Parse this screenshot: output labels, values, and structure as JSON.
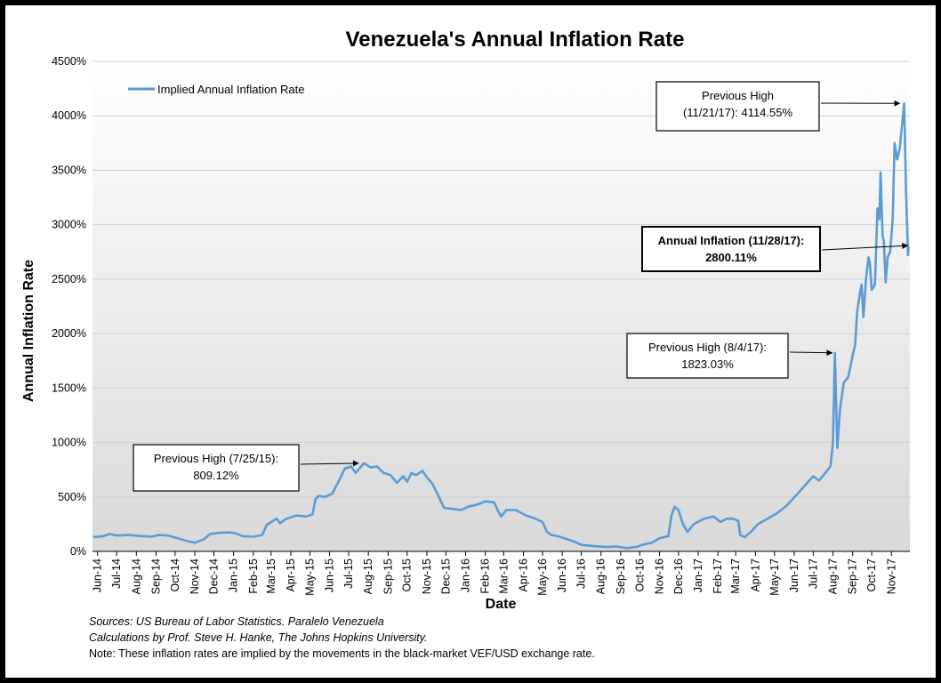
{
  "chart_data": {
    "type": "line",
    "title": "Venezuela's Annual Inflation Rate",
    "xlabel": "Date",
    "ylabel": "Annual Inflation Rate",
    "ylim": [
      0,
      4500
    ],
    "yticks": [
      "0%",
      "500%",
      "1000%",
      "1500%",
      "2000%",
      "2500%",
      "3000%",
      "3500%",
      "4000%",
      "4500%"
    ],
    "ytick_values": [
      0,
      500,
      1000,
      1500,
      2000,
      2500,
      3000,
      3500,
      4000,
      4500
    ],
    "xticks": [
      "Jun-14",
      "Jul-14",
      "Aug-14",
      "Sep-14",
      "Oct-14",
      "Nov-14",
      "Dec-14",
      "Jan-15",
      "Feb-15",
      "Mar-15",
      "Apr-15",
      "May-15",
      "Jun-15",
      "Jul-15",
      "Aug-15",
      "Sep-15",
      "Oct-15",
      "Nov-15",
      "Dec-15",
      "Jan-16",
      "Feb-16",
      "Mar-16",
      "Apr-16",
      "May-16",
      "Jun-16",
      "Jul-16",
      "Aug-16",
      "Sep-16",
      "Oct-16",
      "Nov-16",
      "Dec-16",
      "Jan-17",
      "Feb-17",
      "Mar-17",
      "Apr-17",
      "May-17",
      "Jun-17",
      "Jul-17",
      "Aug-17",
      "Sep-17",
      "Oct-17",
      "Nov-17"
    ],
    "grid": true,
    "legend_position": "top-left",
    "series": [
      {
        "name": "Implied Annual Inflation Rate",
        "color": "#5b9bd5",
        "points": [
          [
            "2014-05-25",
            130
          ],
          [
            "2014-06-10",
            140
          ],
          [
            "2014-06-20",
            160
          ],
          [
            "2014-07-01",
            145
          ],
          [
            "2014-07-20",
            150
          ],
          [
            "2014-08-10",
            140
          ],
          [
            "2014-08-25",
            135
          ],
          [
            "2014-09-05",
            150
          ],
          [
            "2014-09-20",
            145
          ],
          [
            "2014-10-05",
            120
          ],
          [
            "2014-10-20",
            95
          ],
          [
            "2014-11-01",
            80
          ],
          [
            "2014-11-15",
            110
          ],
          [
            "2014-11-25",
            160
          ],
          [
            "2014-12-10",
            170
          ],
          [
            "2014-12-25",
            175
          ],
          [
            "2015-01-05",
            165
          ],
          [
            "2015-01-15",
            140
          ],
          [
            "2015-02-01",
            135
          ],
          [
            "2015-02-15",
            150
          ],
          [
            "2015-02-22",
            240
          ],
          [
            "2015-03-01",
            270
          ],
          [
            "2015-03-10",
            300
          ],
          [
            "2015-03-15",
            260
          ],
          [
            "2015-03-25",
            300
          ],
          [
            "2015-04-10",
            330
          ],
          [
            "2015-04-25",
            320
          ],
          [
            "2015-05-05",
            340
          ],
          [
            "2015-05-10",
            480
          ],
          [
            "2015-05-15",
            510
          ],
          [
            "2015-05-25",
            500
          ],
          [
            "2015-06-05",
            530
          ],
          [
            "2015-06-15",
            640
          ],
          [
            "2015-06-25",
            760
          ],
          [
            "2015-07-05",
            780
          ],
          [
            "2015-07-12",
            720
          ],
          [
            "2015-07-25",
            809
          ],
          [
            "2015-08-05",
            770
          ],
          [
            "2015-08-15",
            780
          ],
          [
            "2015-08-25",
            720
          ],
          [
            "2015-09-05",
            700
          ],
          [
            "2015-09-15",
            630
          ],
          [
            "2015-09-25",
            690
          ],
          [
            "2015-10-01",
            640
          ],
          [
            "2015-10-08",
            720
          ],
          [
            "2015-10-15",
            700
          ],
          [
            "2015-10-25",
            740
          ],
          [
            "2015-11-01",
            680
          ],
          [
            "2015-11-10",
            620
          ],
          [
            "2015-11-20",
            500
          ],
          [
            "2015-11-28",
            400
          ],
          [
            "2015-12-10",
            390
          ],
          [
            "2015-12-25",
            380
          ],
          [
            "2016-01-05",
            410
          ],
          [
            "2016-01-20",
            430
          ],
          [
            "2016-02-01",
            460
          ],
          [
            "2016-02-15",
            450
          ],
          [
            "2016-02-22",
            360
          ],
          [
            "2016-02-26",
            320
          ],
          [
            "2016-03-05",
            380
          ],
          [
            "2016-03-20",
            380
          ],
          [
            "2016-04-05",
            330
          ],
          [
            "2016-04-20",
            300
          ],
          [
            "2016-05-01",
            270
          ],
          [
            "2016-05-08",
            180
          ],
          [
            "2016-05-15",
            150
          ],
          [
            "2016-05-25",
            140
          ],
          [
            "2016-06-10",
            110
          ],
          [
            "2016-06-20",
            90
          ],
          [
            "2016-07-01",
            60
          ],
          [
            "2016-07-20",
            50
          ],
          [
            "2016-08-10",
            40
          ],
          [
            "2016-08-25",
            45
          ],
          [
            "2016-09-10",
            30
          ],
          [
            "2016-09-25",
            40
          ],
          [
            "2016-10-05",
            60
          ],
          [
            "2016-10-20",
            80
          ],
          [
            "2016-11-01",
            120
          ],
          [
            "2016-11-15",
            140
          ],
          [
            "2016-11-20",
            330
          ],
          [
            "2016-11-25",
            410
          ],
          [
            "2016-12-01",
            380
          ],
          [
            "2016-12-08",
            250
          ],
          [
            "2016-12-15",
            180
          ],
          [
            "2016-12-25",
            250
          ],
          [
            "2017-01-10",
            300
          ],
          [
            "2017-01-25",
            320
          ],
          [
            "2017-02-05",
            270
          ],
          [
            "2017-02-15",
            300
          ],
          [
            "2017-02-25",
            300
          ],
          [
            "2017-03-05",
            280
          ],
          [
            "2017-03-08",
            150
          ],
          [
            "2017-03-15",
            130
          ],
          [
            "2017-03-25",
            180
          ],
          [
            "2017-04-05",
            250
          ],
          [
            "2017-04-20",
            300
          ],
          [
            "2017-05-05",
            350
          ],
          [
            "2017-05-20",
            420
          ],
          [
            "2017-06-05",
            520
          ],
          [
            "2017-06-20",
            620
          ],
          [
            "2017-07-01",
            690
          ],
          [
            "2017-07-10",
            650
          ],
          [
            "2017-07-20",
            720
          ],
          [
            "2017-07-28",
            780
          ],
          [
            "2017-08-01",
            1000
          ],
          [
            "2017-08-04",
            1823
          ],
          [
            "2017-08-06",
            1350
          ],
          [
            "2017-08-08",
            950
          ],
          [
            "2017-08-12",
            1300
          ],
          [
            "2017-08-18",
            1550
          ],
          [
            "2017-08-25",
            1600
          ],
          [
            "2017-09-01",
            1800
          ],
          [
            "2017-09-05",
            1900
          ],
          [
            "2017-09-08",
            2200
          ],
          [
            "2017-09-12",
            2350
          ],
          [
            "2017-09-15",
            2450
          ],
          [
            "2017-09-18",
            2150
          ],
          [
            "2017-09-22",
            2500
          ],
          [
            "2017-09-26",
            2700
          ],
          [
            "2017-09-28",
            2650
          ],
          [
            "2017-10-01",
            2400
          ],
          [
            "2017-10-06",
            2450
          ],
          [
            "2017-10-10",
            3150
          ],
          [
            "2017-10-13",
            3050
          ],
          [
            "2017-10-15",
            3480
          ],
          [
            "2017-10-18",
            2900
          ],
          [
            "2017-10-20",
            2850
          ],
          [
            "2017-10-23",
            2470
          ],
          [
            "2017-10-26",
            2700
          ],
          [
            "2017-10-30",
            2750
          ],
          [
            "2017-11-03",
            3050
          ],
          [
            "2017-11-06",
            3750
          ],
          [
            "2017-11-10",
            3600
          ],
          [
            "2017-11-14",
            3700
          ],
          [
            "2017-11-21",
            4114
          ],
          [
            "2017-11-24",
            3300
          ],
          [
            "2017-11-27",
            2720
          ],
          [
            "2017-11-28",
            2800
          ]
        ]
      }
    ],
    "annotations": [
      {
        "lines": [
          "Previous High (7/25/15):",
          "809.12%"
        ],
        "bold": false,
        "target": [
          "2015-07-25",
          809
        ]
      },
      {
        "lines": [
          "Previous High (8/4/17):",
          "1823.03%"
        ],
        "bold": false,
        "target": [
          "2017-08-04",
          1823
        ]
      },
      {
        "lines": [
          "Annual Inflation (11/28/17):",
          "2800.11%"
        ],
        "bold": true,
        "target": [
          "2017-11-28",
          2800
        ]
      },
      {
        "lines": [
          "Previous High",
          "(11/21/17): 4114.55%"
        ],
        "bold": false,
        "target": [
          "2017-11-21",
          4114
        ]
      }
    ]
  },
  "sources": {
    "line1": "Sources: US Bureau of Labor Statistics. Paralelo Venezuela",
    "line2": "Calculations by Prof. Steve H. Hanke, The Johns Hopkins University.",
    "note": "Note: These inflation rates are implied by the movements in the black-market VEF/USD exchange rate."
  }
}
